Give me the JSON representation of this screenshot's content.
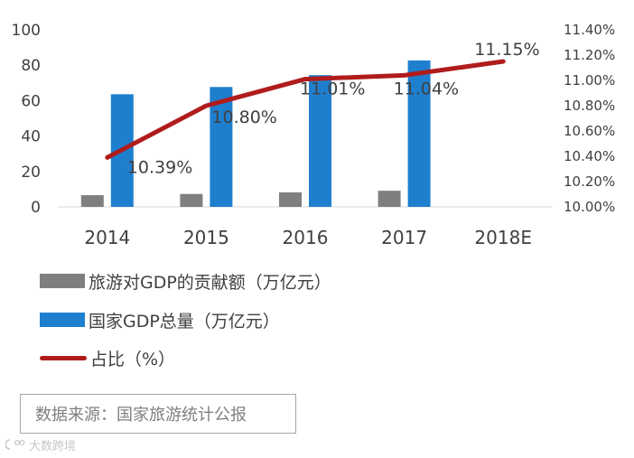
{
  "chart_data": {
    "type": "bar",
    "categories": [
      "2014",
      "2015",
      "2016",
      "2017",
      "2018E"
    ],
    "series": [
      {
        "name": "旅游对GDP的贡献额（万亿元）",
        "type": "bar",
        "axis": "left",
        "color": "#7f7f7f",
        "values": [
          6.6,
          7.3,
          8.2,
          9.1,
          null
        ]
      },
      {
        "name": "国家GDP总量（万亿元）",
        "type": "bar",
        "axis": "left",
        "color": "#1f7fcf",
        "values": [
          63.6,
          67.7,
          74.4,
          82.7,
          null
        ]
      },
      {
        "name": "占比（%）",
        "type": "line",
        "axis": "right",
        "color": "#b01c1c",
        "values": [
          10.39,
          10.8,
          11.01,
          11.04,
          11.15
        ],
        "labels": [
          "10.39%",
          "10.80%",
          "11.01%",
          "11.04%",
          "11.15%"
        ]
      }
    ],
    "y_left": {
      "min": 0,
      "max": 100,
      "ticks": [
        "0",
        "20",
        "40",
        "60",
        "80",
        "100"
      ]
    },
    "y_right": {
      "min": 10.0,
      "max": 11.4,
      "ticks": [
        "10.00%",
        "10.20%",
        "10.40%",
        "10.60%",
        "10.80%",
        "11.00%",
        "11.20%",
        "11.40%"
      ]
    },
    "grid": false,
    "legend_position": "bottom-left"
  },
  "source": "数据来源：国家旅游统计公报",
  "watermark": "大数跨境"
}
